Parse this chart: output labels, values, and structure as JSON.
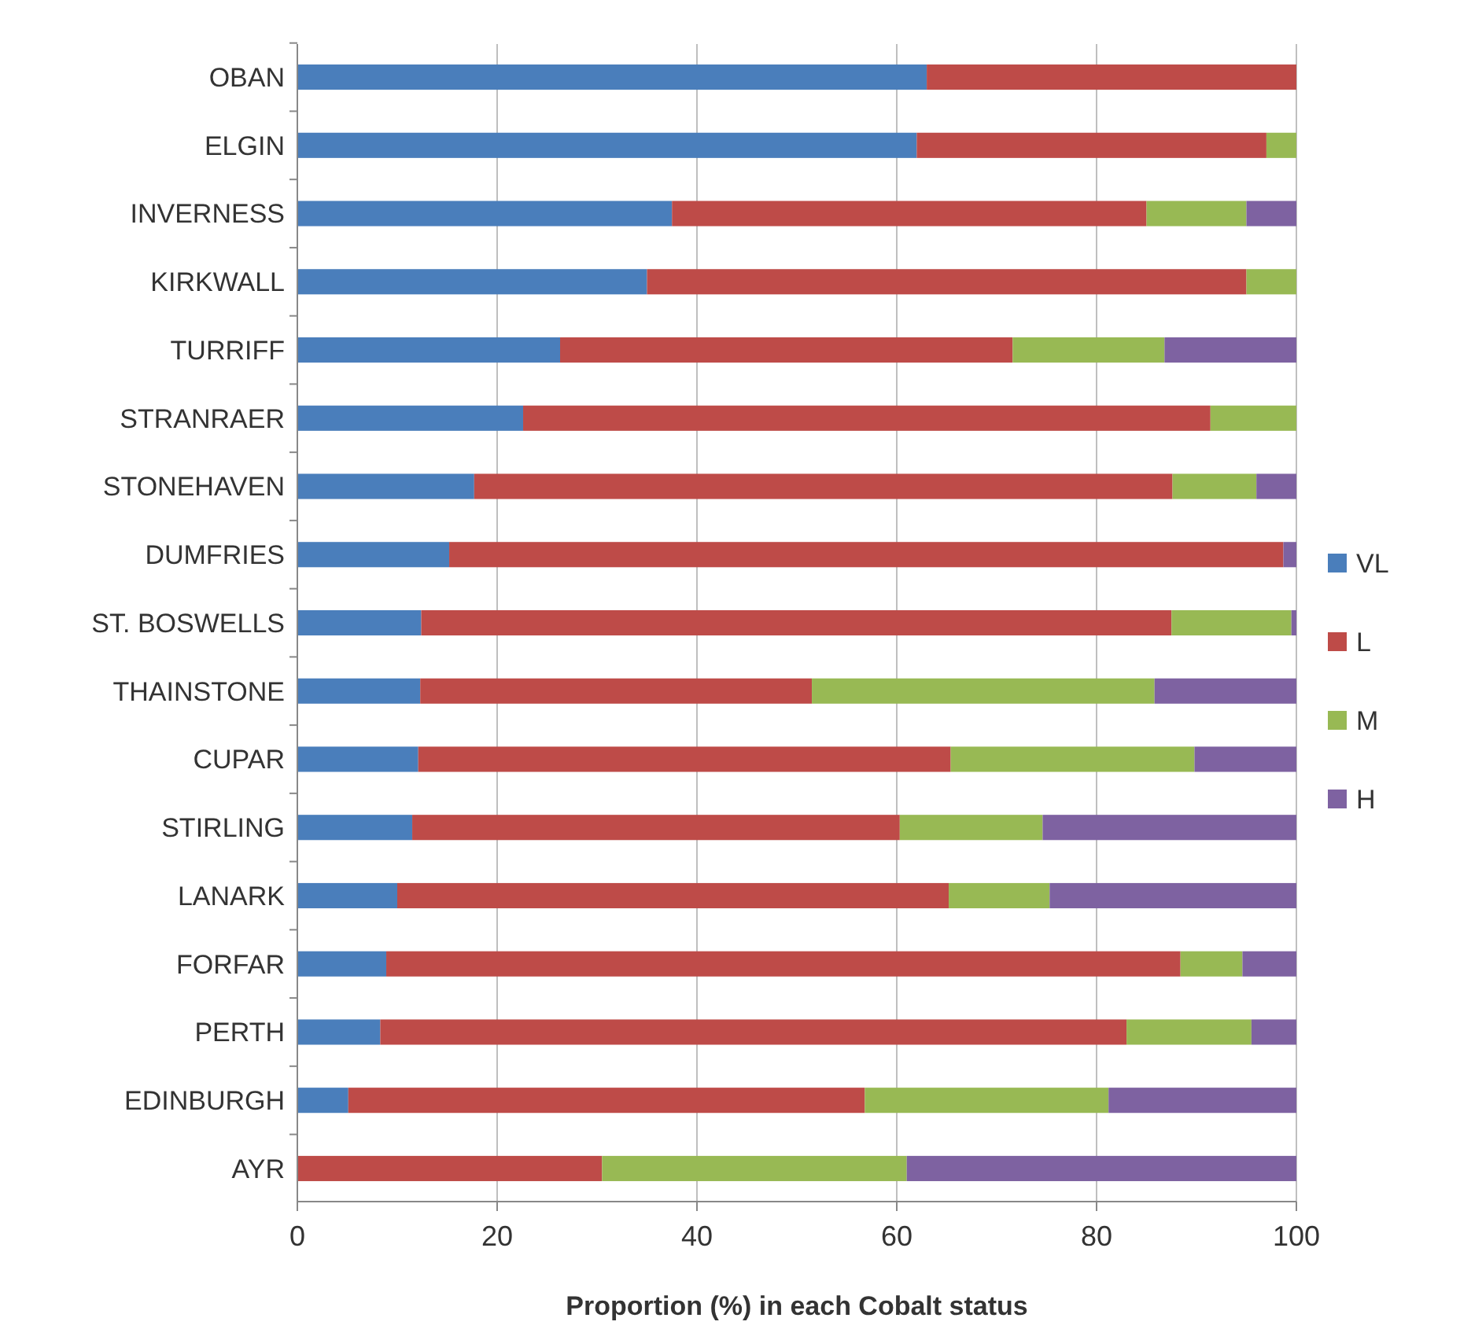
{
  "chart_data": {
    "type": "bar",
    "orientation": "horizontal",
    "stacked": true,
    "xlabel": "Proportion (%) in each Cobalt status",
    "categories": [
      "OBAN",
      "ELGIN",
      "INVERNESS",
      "KIRKWALL",
      "TURRIFF",
      "STRANRAER",
      "STONEHAVEN",
      "DUMFRIES",
      "ST. BOSWELLS",
      "THAINSTONE",
      "CUPAR",
      "STIRLING",
      "LANARK",
      "FORFAR",
      "PERTH",
      "EDINBURGH",
      "AYR"
    ],
    "series": [
      {
        "name": "VL",
        "color": "#4a7ebb",
        "values": [
          63,
          62,
          37.5,
          35,
          26.3,
          22.6,
          17.7,
          15.2,
          12.4,
          12.3,
          12.1,
          11.5,
          10,
          8.9,
          8.3,
          5.1,
          0
        ]
      },
      {
        "name": "L",
        "color": "#be4b48",
        "values": [
          37,
          35,
          47.5,
          60,
          45.3,
          68.8,
          69.9,
          83.5,
          75.1,
          39.2,
          53.3,
          48.8,
          55.2,
          79.5,
          74.7,
          51.7,
          30.5
        ]
      },
      {
        "name": "M",
        "color": "#98b954",
        "values": [
          0,
          3,
          10,
          5,
          15.2,
          8.6,
          8.4,
          0,
          12,
          34.3,
          24.4,
          14.3,
          10.1,
          6.2,
          12.5,
          24.4,
          30.5
        ]
      },
      {
        "name": "H",
        "color": "#7e62a1",
        "values": [
          0,
          0,
          5,
          0,
          13.2,
          0,
          4,
          1.3,
          0.5,
          14.2,
          10.2,
          25.4,
          24.7,
          5.4,
          4.5,
          18.8,
          39
        ]
      }
    ],
    "xlim": [
      0,
      100
    ],
    "xticks": [
      0,
      20,
      40,
      60,
      80,
      100
    ],
    "grid": "x",
    "legend": "right"
  }
}
